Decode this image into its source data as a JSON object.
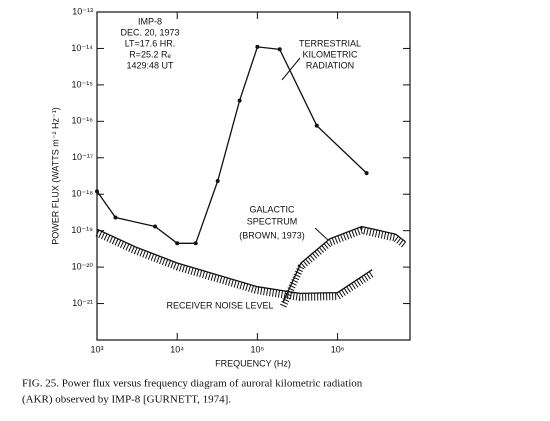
{
  "chart_data": {
    "type": "line",
    "y_label": "POWER FLUX (WATTS m⁻² Hz⁻¹)",
    "x_label": "FREQUENCY (Hz)",
    "x_log": true,
    "y_log": true,
    "xlim": [
      1000,
      8000000
    ],
    "ylim": [
      1e-22,
      1e-13
    ],
    "xticks": [
      {
        "value": 1000,
        "label": "10³"
      },
      {
        "value": 10000,
        "label": "10⁴"
      },
      {
        "value": 100000,
        "label": "10⁵"
      },
      {
        "value": 1000000,
        "label": "10⁶"
      }
    ],
    "yticks": [
      {
        "value": 1e-13,
        "label": "10⁻¹³"
      },
      {
        "value": 1e-14,
        "label": "10⁻¹⁴"
      },
      {
        "value": 1e-15,
        "label": "10⁻¹⁵"
      },
      {
        "value": 1e-16,
        "label": "10⁻¹⁶"
      },
      {
        "value": 1e-17,
        "label": "10⁻¹⁷"
      },
      {
        "value": 1e-18,
        "label": "10⁻¹⁸"
      },
      {
        "value": 1e-19,
        "label": "10⁻¹⁹"
      },
      {
        "value": 1e-20,
        "label": "10⁻²⁰"
      },
      {
        "value": 1e-21,
        "label": "10⁻²¹"
      }
    ],
    "series": [
      {
        "color": "#111111",
        "markers": true,
        "x": [
          1000,
          1700,
          5300,
          10000,
          17000,
          32000,
          60000,
          100000,
          190000,
          550000,
          2300000
        ],
        "values": [
          1.2e-18,
          2.3e-19,
          1.3e-19,
          4.5e-20,
          4.5e-20,
          2.3e-18,
          3.7e-16,
          1.1e-14,
          9.5e-15,
          7.6e-17,
          3.8e-18
        ]
      },
      {
        "color": "#111111",
        "hatched": true,
        "x": [
          1000,
          3000,
          10000,
          100000,
          340000,
          1000000,
          2700000
        ],
        "values": [
          1.1e-19,
          3.6e-20,
          1.3e-20,
          2.9e-21,
          1.9e-21,
          2e-21,
          8.5e-21
        ]
      },
      {
        "color": "#111111",
        "hatched": true,
        "x": [
          210000,
          350000,
          800000,
          2000000,
          5300000,
          7000000
        ],
        "values": [
          1.1e-21,
          1.3e-20,
          6e-20,
          1.3e-19,
          8e-20,
          5e-20
        ]
      }
    ],
    "annotations": [
      "IMP-8",
      "DEC. 20, 1973",
      "LT=17.6 HR.",
      "R=25.2 Rₑ",
      "1429:48 UT",
      "TERRESTRIAL",
      "KILOMETRIC",
      "RADIATION",
      "GALACTIC",
      "SPECTRUM",
      "(BROWN, 1973)",
      "RECEIVER NOISE LEVEL"
    ],
    "caption": [
      "FIG. 25.  Power flux versus frequency diagram of auroral kilometric radiation",
      "(AKR) observed by IMP-8 [GURNETT, 1974]."
    ]
  }
}
